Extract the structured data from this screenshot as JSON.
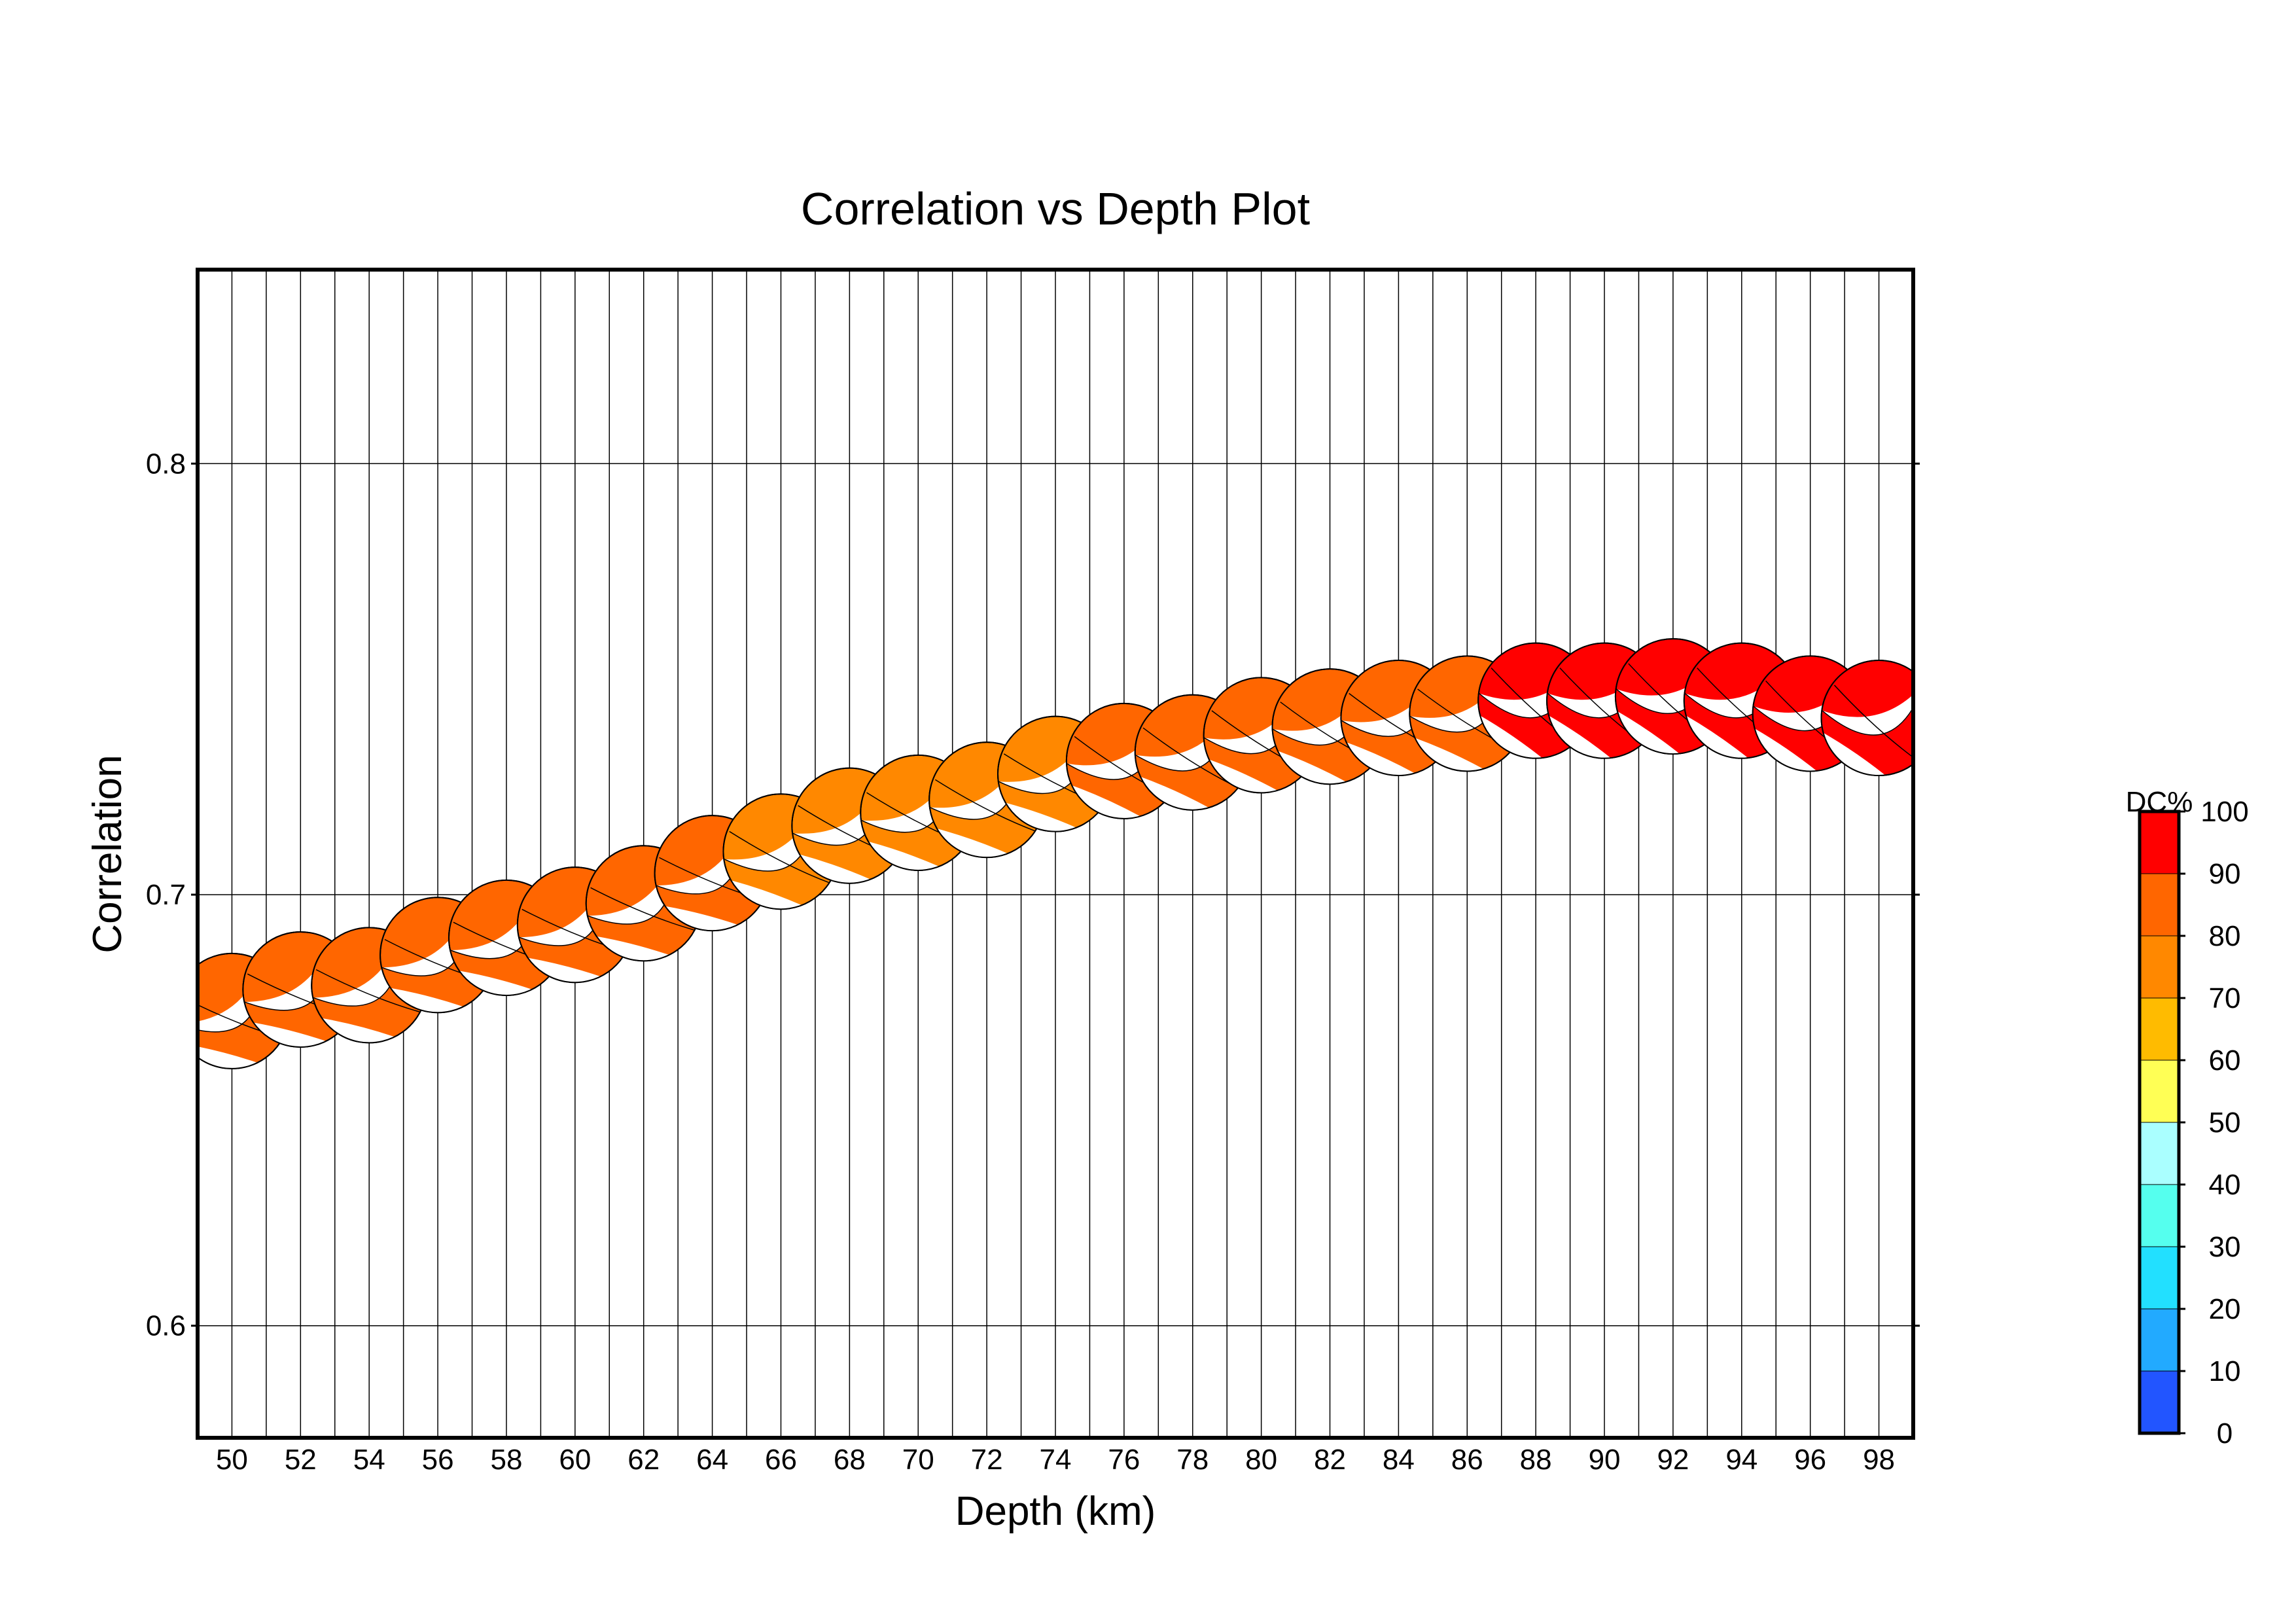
{
  "chart_data": {
    "type": "scatter",
    "title": "Correlation vs Depth Plot",
    "xlabel": "Depth (km)",
    "ylabel": "Correlation",
    "xlim": [
      49,
      99
    ],
    "ylim": [
      0.574,
      0.845
    ],
    "grid": true,
    "x_ticks": [
      "50",
      "52",
      "54",
      "56",
      "58",
      "60",
      "62",
      "64",
      "66",
      "68",
      "70",
      "72",
      "74",
      "76",
      "78",
      "80",
      "82",
      "84",
      "86",
      "88",
      "90",
      "92",
      "94",
      "96",
      "98"
    ],
    "y_ticks": [
      "0.6",
      "0.7",
      "0.8"
    ],
    "marker": "focal-mechanism-beachball",
    "points": [
      {
        "x": 50,
        "y": 0.673,
        "dc": 85
      },
      {
        "x": 52,
        "y": 0.678,
        "dc": 85
      },
      {
        "x": 54,
        "y": 0.679,
        "dc": 85
      },
      {
        "x": 56,
        "y": 0.686,
        "dc": 85
      },
      {
        "x": 58,
        "y": 0.69,
        "dc": 85
      },
      {
        "x": 60,
        "y": 0.693,
        "dc": 85
      },
      {
        "x": 62,
        "y": 0.698,
        "dc": 85
      },
      {
        "x": 64,
        "y": 0.705,
        "dc": 85
      },
      {
        "x": 66,
        "y": 0.71,
        "dc": 75
      },
      {
        "x": 68,
        "y": 0.716,
        "dc": 75
      },
      {
        "x": 70,
        "y": 0.719,
        "dc": 75
      },
      {
        "x": 72,
        "y": 0.722,
        "dc": 75
      },
      {
        "x": 74,
        "y": 0.728,
        "dc": 75
      },
      {
        "x": 76,
        "y": 0.731,
        "dc": 85
      },
      {
        "x": 78,
        "y": 0.733,
        "dc": 85
      },
      {
        "x": 80,
        "y": 0.737,
        "dc": 85
      },
      {
        "x": 82,
        "y": 0.739,
        "dc": 85
      },
      {
        "x": 84,
        "y": 0.741,
        "dc": 85
      },
      {
        "x": 86,
        "y": 0.742,
        "dc": 85
      },
      {
        "x": 88,
        "y": 0.745,
        "dc": 95
      },
      {
        "x": 90,
        "y": 0.745,
        "dc": 95
      },
      {
        "x": 92,
        "y": 0.746,
        "dc": 95
      },
      {
        "x": 94,
        "y": 0.745,
        "dc": 95
      },
      {
        "x": 96,
        "y": 0.742,
        "dc": 95
      },
      {
        "x": 98,
        "y": 0.741,
        "dc": 95
      }
    ],
    "colorbar": {
      "title": "DC%",
      "labels": [
        "0",
        "10",
        "20",
        "30",
        "40",
        "50",
        "60",
        "70",
        "80",
        "90",
        "100"
      ],
      "colors": [
        "#2255ff",
        "#22aaff",
        "#22e0ff",
        "#55ffee",
        "#aaffff",
        "#ffff55",
        "#ffbb00",
        "#ff8800",
        "#ff6600",
        "#ff0000"
      ]
    }
  }
}
